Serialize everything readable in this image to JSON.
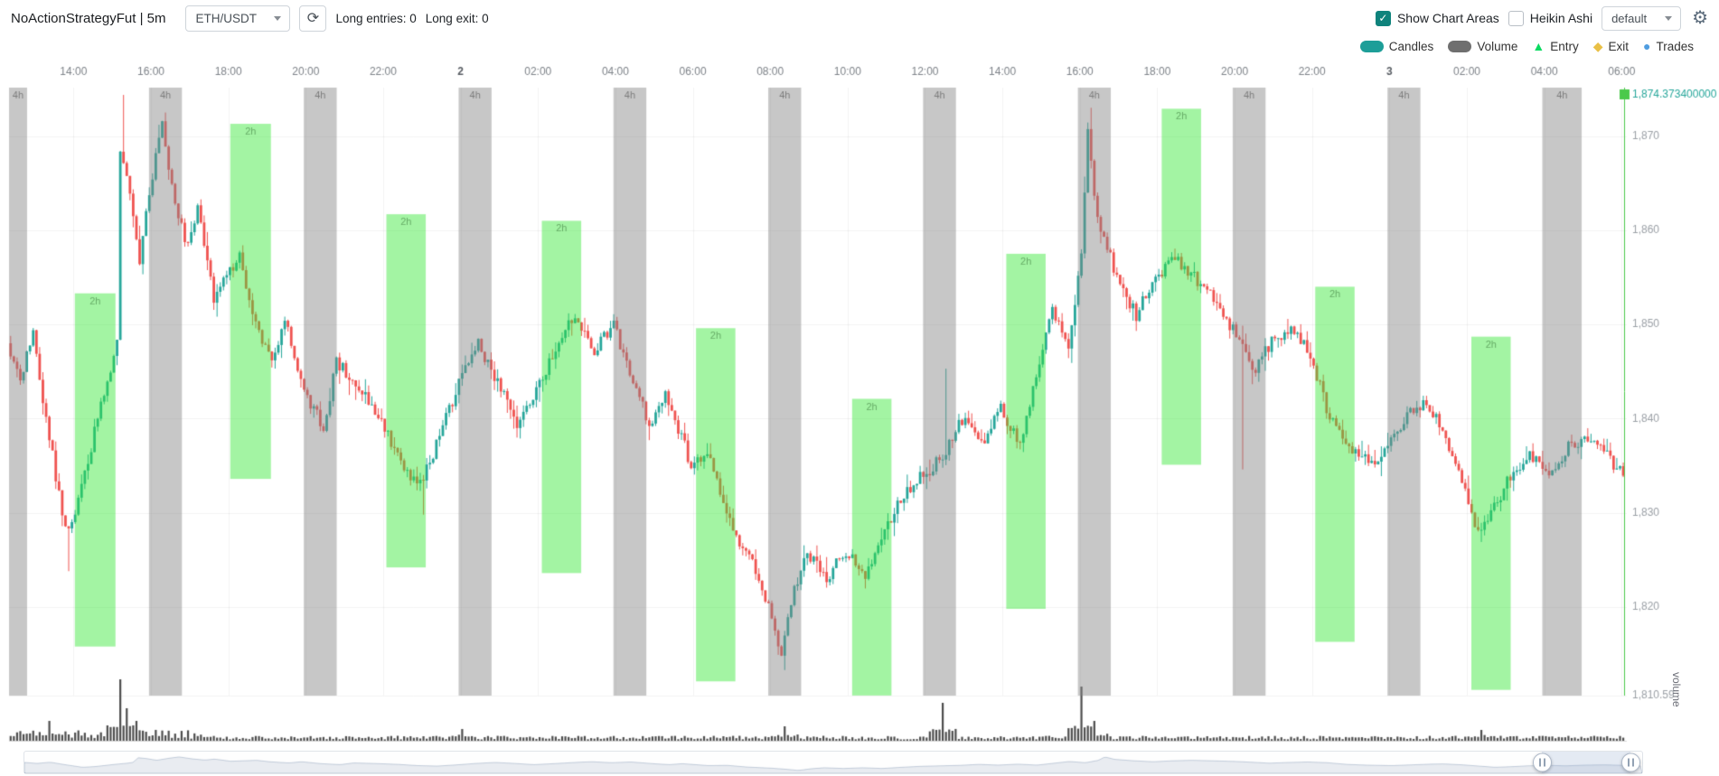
{
  "colors": {
    "candle_up": "#26a69a",
    "candle_down": "#ef5350",
    "volume": "#4d4d4d",
    "gray_area": "rgba(130,130,130,0.45)",
    "green_area": "rgba(50,230,50,0.45)",
    "current_line": "#4bc94b",
    "accent_teal": "#26a69a",
    "checkbox_teal": "#0f837c"
  },
  "icons": {
    "refresh": "⟳",
    "gear": "⚙",
    "check": "✓"
  },
  "header": {
    "title": "NoActionStrategyFut | 5m",
    "pair_select": {
      "value": "ETH/USDT"
    },
    "long_entries": "Long entries: 0",
    "long_exit": "Long exit: 0",
    "show_chart_areas": {
      "label": "Show Chart Areas",
      "checked": true
    },
    "heikin_ashi": {
      "label": "Heikin Ashi",
      "checked": false
    },
    "plot_config_select": {
      "value": "default"
    }
  },
  "legend": {
    "items": [
      {
        "label": "Candles",
        "shape": "pill",
        "color": "#1d9e98"
      },
      {
        "label": "Volume",
        "shape": "pill",
        "color": "#6f6f6f"
      },
      {
        "label": "Entry",
        "shape": "triangle",
        "glyph": "▲",
        "color": "#0bda61"
      },
      {
        "label": "Exit",
        "shape": "diamond",
        "glyph": "◆",
        "color": "#e9c046"
      },
      {
        "label": "Trades",
        "shape": "circle",
        "glyph": "●",
        "color": "#4f9de0"
      }
    ]
  },
  "chart_data": {
    "type": "candlestick",
    "pair": "ETH/USDT",
    "timeframe": "5m",
    "labels": {
      "volume_axis": "volume"
    },
    "y_axis": {
      "max": 1874.3734,
      "min": 1810.59,
      "max_label": "1,874.373400000",
      "ticks": [
        {
          "label": "1,870",
          "price": 1870
        },
        {
          "label": "1,860",
          "price": 1860
        },
        {
          "label": "1,850",
          "price": 1850
        },
        {
          "label": "1,840",
          "price": 1840
        },
        {
          "label": "1,830",
          "price": 1830
        },
        {
          "label": "1,820",
          "price": 1820
        },
        {
          "label": "1,810.59",
          "price": 1810.59
        }
      ]
    },
    "x_axis": {
      "total_minutes": 2508,
      "first_tick_minute": 100,
      "tick_interval_minutes": 120,
      "ticks": [
        {
          "label": "14:00"
        },
        {
          "label": "16:00"
        },
        {
          "label": "18:00"
        },
        {
          "label": "20:00"
        },
        {
          "label": "22:00"
        },
        {
          "label": "2",
          "bold": true
        },
        {
          "label": "02:00"
        },
        {
          "label": "04:00"
        },
        {
          "label": "06:00"
        },
        {
          "label": "08:00"
        },
        {
          "label": "10:00"
        },
        {
          "label": "12:00"
        },
        {
          "label": "14:00"
        },
        {
          "label": "16:00"
        },
        {
          "label": "18:00"
        },
        {
          "label": "20:00"
        },
        {
          "label": "22:00"
        },
        {
          "label": "3",
          "bold": true
        },
        {
          "label": "02:00"
        },
        {
          "label": "04:00"
        },
        {
          "label": "06:00"
        }
      ]
    },
    "areas": {
      "gray": {
        "label": "4h",
        "ranges": [
          [
            -23,
            28
          ],
          [
            217,
            268
          ],
          [
            457,
            508
          ],
          [
            697,
            748
          ],
          [
            937,
            988
          ],
          [
            1177,
            1228
          ],
          [
            1417,
            1468
          ],
          [
            1657,
            1708
          ],
          [
            1897,
            1948
          ],
          [
            2137,
            2188
          ],
          [
            2377,
            2438
          ]
        ]
      },
      "green": {
        "label": "2h",
        "ranges": [
          {
            "t0": 102,
            "t1": 165,
            "high": 1853.3,
            "low": 1815.8
          },
          {
            "t0": 343,
            "t1": 406,
            "high": 1871.3,
            "low": 1833.6
          },
          {
            "t0": 585,
            "t1": 646,
            "high": 1861.7,
            "low": 1824.2
          },
          {
            "t0": 826,
            "t1": 887,
            "high": 1861.0,
            "low": 1823.6
          },
          {
            "t0": 1065,
            "t1": 1126,
            "high": 1849.6,
            "low": 1812.1
          },
          {
            "t0": 1307,
            "t1": 1368,
            "high": 1842.1,
            "low": 1810.6
          },
          {
            "t0": 1546,
            "t1": 1607,
            "high": 1857.5,
            "low": 1819.8
          },
          {
            "t0": 1787,
            "t1": 1848,
            "high": 1872.9,
            "low": 1835.1
          },
          {
            "t0": 2025,
            "t1": 2086,
            "high": 1854.0,
            "low": 1816.3
          },
          {
            "t0": 2267,
            "t1": 2328,
            "high": 1848.7,
            "low": 1811.2
          }
        ]
      }
    },
    "price_path": [
      [
        0,
        1848
      ],
      [
        20,
        1844
      ],
      [
        40,
        1849
      ],
      [
        60,
        1840
      ],
      [
        90,
        1828
      ],
      [
        110,
        1831
      ],
      [
        140,
        1840
      ],
      [
        160,
        1845
      ],
      [
        170,
        1849
      ],
      [
        175,
        1868
      ],
      [
        190,
        1864
      ],
      [
        205,
        1857
      ],
      [
        225,
        1866
      ],
      [
        240,
        1871
      ],
      [
        260,
        1863
      ],
      [
        280,
        1858
      ],
      [
        295,
        1862
      ],
      [
        320,
        1853
      ],
      [
        340,
        1855
      ],
      [
        360,
        1857
      ],
      [
        380,
        1851
      ],
      [
        410,
        1846
      ],
      [
        430,
        1851
      ],
      [
        460,
        1843
      ],
      [
        490,
        1839
      ],
      [
        510,
        1846
      ],
      [
        540,
        1844
      ],
      [
        580,
        1840
      ],
      [
        610,
        1835
      ],
      [
        640,
        1833
      ],
      [
        670,
        1838
      ],
      [
        700,
        1844
      ],
      [
        730,
        1848
      ],
      [
        760,
        1844
      ],
      [
        790,
        1839
      ],
      [
        820,
        1843
      ],
      [
        860,
        1849
      ],
      [
        880,
        1851
      ],
      [
        910,
        1847
      ],
      [
        940,
        1850
      ],
      [
        980,
        1842
      ],
      [
        1000,
        1839
      ],
      [
        1020,
        1843
      ],
      [
        1060,
        1835
      ],
      [
        1090,
        1836
      ],
      [
        1120,
        1829
      ],
      [
        1160,
        1824
      ],
      [
        1180,
        1820
      ],
      [
        1200,
        1815
      ],
      [
        1220,
        1822
      ],
      [
        1240,
        1826
      ],
      [
        1270,
        1823
      ],
      [
        1300,
        1826
      ],
      [
        1330,
        1823
      ],
      [
        1360,
        1828
      ],
      [
        1390,
        1832
      ],
      [
        1420,
        1834
      ],
      [
        1450,
        1836
      ],
      [
        1480,
        1840
      ],
      [
        1510,
        1837
      ],
      [
        1540,
        1841
      ],
      [
        1570,
        1837
      ],
      [
        1600,
        1846
      ],
      [
        1620,
        1852
      ],
      [
        1645,
        1847
      ],
      [
        1665,
        1857
      ],
      [
        1675,
        1871
      ],
      [
        1690,
        1861
      ],
      [
        1720,
        1855
      ],
      [
        1750,
        1851
      ],
      [
        1780,
        1855
      ],
      [
        1810,
        1857
      ],
      [
        1840,
        1855
      ],
      [
        1880,
        1852
      ],
      [
        1910,
        1848
      ],
      [
        1930,
        1845
      ],
      [
        1960,
        1848
      ],
      [
        1990,
        1850
      ],
      [
        2020,
        1847
      ],
      [
        2050,
        1840
      ],
      [
        2080,
        1837
      ],
      [
        2120,
        1835
      ],
      [
        2150,
        1838
      ],
      [
        2180,
        1841
      ],
      [
        2200,
        1842
      ],
      [
        2230,
        1838
      ],
      [
        2260,
        1832
      ],
      [
        2280,
        1828
      ],
      [
        2310,
        1831
      ],
      [
        2330,
        1834
      ],
      [
        2360,
        1836
      ],
      [
        2390,
        1834
      ],
      [
        2420,
        1837
      ],
      [
        2450,
        1838
      ],
      [
        2480,
        1836
      ],
      [
        2508,
        1834
      ]
    ],
    "wicks": [
      {
        "t": 90,
        "low": 1823.8
      },
      {
        "t": 175,
        "high": 1874.37
      },
      {
        "t": 240,
        "high": 1872.5
      },
      {
        "t": 640,
        "low": 1829.8
      },
      {
        "t": 1200,
        "low": 1813.3
      },
      {
        "t": 1450,
        "high": 1845.3
      },
      {
        "t": 1675,
        "high": 1873.0
      },
      {
        "t": 1910,
        "low": 1834.6
      },
      {
        "t": 2280,
        "low": 1826.9
      }
    ],
    "volume_spikes": [
      {
        "t": 60,
        "v": 22
      },
      {
        "t": 170,
        "v": 68
      },
      {
        "t": 180,
        "v": 36
      },
      {
        "t": 195,
        "v": 22
      },
      {
        "t": 700,
        "v": 13
      },
      {
        "t": 1200,
        "v": 16
      },
      {
        "t": 1445,
        "v": 42
      },
      {
        "t": 1660,
        "v": 60
      },
      {
        "t": 1680,
        "v": 22
      },
      {
        "t": 2280,
        "v": 12
      }
    ],
    "current_line_minute": 2504,
    "datazoom": {
      "window_start_pct": 93.8,
      "window_end_pct": 99.3
    }
  }
}
